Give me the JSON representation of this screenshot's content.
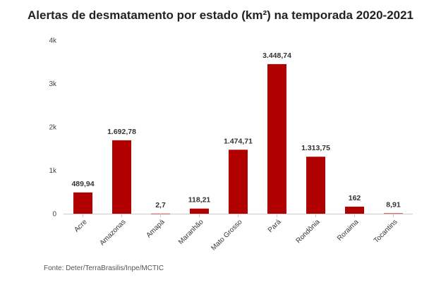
{
  "chart_data": {
    "type": "bar",
    "title": "Alertas de desmatamento por estado (km²) na temporada 2020-2021",
    "categories": [
      "Acre",
      "Amazonas",
      "Amapá",
      "Maranhão",
      "Mato Grosso",
      "Pará",
      "Rondônia",
      "Roraima",
      "Tocantins"
    ],
    "values": [
      489.94,
      1692.78,
      2.7,
      118.21,
      1474.71,
      3448.74,
      1313.75,
      162,
      8.91
    ],
    "value_labels": [
      "489,94",
      "1.692,78",
      "2,7",
      "118,21",
      "1.474,71",
      "3.448,74",
      "1.313,75",
      "162",
      "8,91"
    ],
    "ylim": [
      0,
      4000
    ],
    "yticks": [
      0,
      1000,
      2000,
      3000,
      4000
    ],
    "ytick_labels": [
      "0",
      "1k",
      "2k",
      "3k",
      "4k"
    ],
    "xlabel": "",
    "ylabel": "",
    "grid": false,
    "bar_color": "#b00000",
    "source": "Fonte: Deter/TerraBrasilis/Inpe/MCTIC"
  }
}
